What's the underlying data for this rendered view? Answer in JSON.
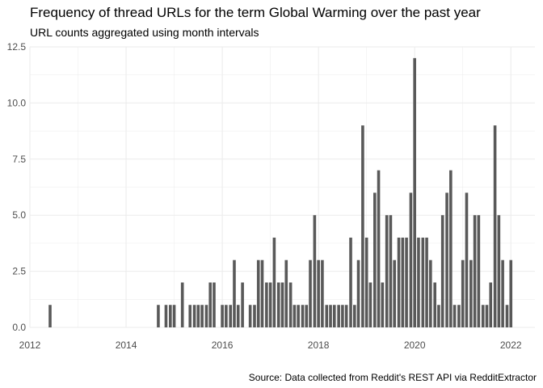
{
  "chart_data": {
    "type": "bar",
    "title": "Frequency of thread URLs for the term Global Warming over the past year",
    "subtitle": "URL counts aggregated using month intervals",
    "caption": "Source: Data collected from Reddit's REST API via RedditExtractor",
    "xlabel": "",
    "ylabel": "",
    "xlim": [
      2012.0,
      2022.5
    ],
    "ylim": [
      0,
      12.5
    ],
    "x_ticks": [
      2012,
      2014,
      2016,
      2018,
      2020,
      2022
    ],
    "x_tick_labels": [
      "2012",
      "2014",
      "2016",
      "2018",
      "2020",
      "2022"
    ],
    "y_ticks": [
      0,
      2.5,
      5,
      7.5,
      10,
      12.5
    ],
    "y_tick_labels": [
      "0.0",
      "2.5",
      "5.0",
      "7.5",
      "10.0",
      "12.5"
    ],
    "grid": true,
    "bar_color": "#595959",
    "grid_color": "#ebebeb",
    "x": [
      2012.42,
      2014.67,
      2014.83,
      2014.92,
      2015.0,
      2015.17,
      2015.33,
      2015.42,
      2015.5,
      2015.58,
      2015.67,
      2015.75,
      2015.83,
      2016.0,
      2016.08,
      2016.17,
      2016.25,
      2016.33,
      2016.42,
      2016.58,
      2016.67,
      2016.75,
      2016.83,
      2016.92,
      2017.0,
      2017.08,
      2017.17,
      2017.25,
      2017.33,
      2017.42,
      2017.5,
      2017.58,
      2017.67,
      2017.75,
      2017.83,
      2017.92,
      2018.0,
      2018.08,
      2018.17,
      2018.25,
      2018.33,
      2018.42,
      2018.5,
      2018.58,
      2018.67,
      2018.75,
      2018.83,
      2018.92,
      2019.0,
      2019.08,
      2019.17,
      2019.25,
      2019.33,
      2019.42,
      2019.5,
      2019.58,
      2019.67,
      2019.75,
      2019.83,
      2019.92,
      2020.0,
      2020.08,
      2020.17,
      2020.25,
      2020.33,
      2020.42,
      2020.5,
      2020.58,
      2020.67,
      2020.75,
      2020.83,
      2020.92,
      2021.0,
      2021.08,
      2021.17,
      2021.25,
      2021.33,
      2021.42,
      2021.5,
      2021.58,
      2021.67,
      2021.75,
      2021.83,
      2021.92,
      2022.0
    ],
    "values": [
      1,
      1,
      1,
      1,
      1,
      2,
      1,
      1,
      1,
      1,
      1,
      2,
      2,
      1,
      1,
      1,
      3,
      1,
      2,
      1,
      1,
      3,
      3,
      2,
      2,
      4,
      2,
      2,
      3,
      2,
      1,
      1,
      1,
      1,
      3,
      5,
      3,
      3,
      1,
      1,
      1,
      1,
      1,
      1,
      4,
      1,
      3,
      9,
      4,
      2,
      6,
      7,
      2,
      5,
      5,
      3,
      4,
      4,
      4,
      6,
      12,
      4,
      4,
      4,
      3,
      2,
      1,
      5,
      6,
      7,
      1,
      1,
      3,
      6,
      3,
      5,
      5,
      1,
      1,
      2,
      9,
      5,
      3,
      1,
      3
    ]
  }
}
